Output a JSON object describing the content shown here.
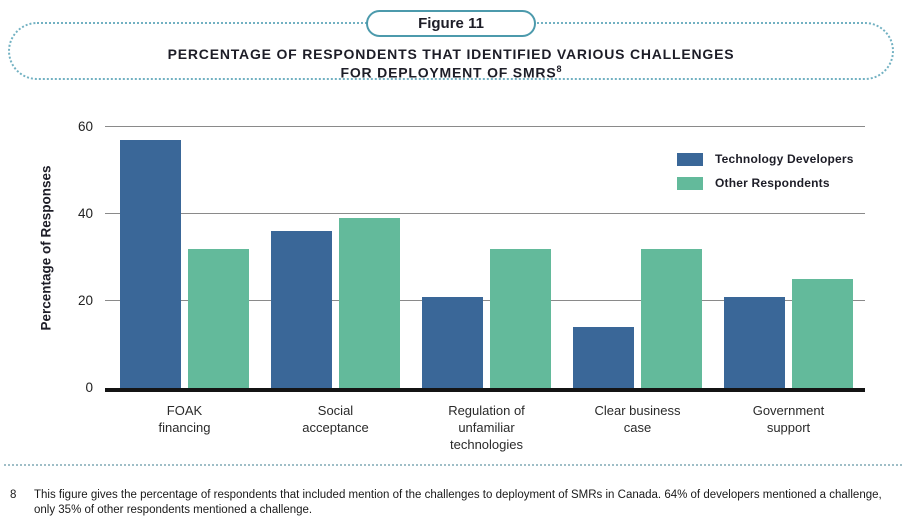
{
  "figure": {
    "tag_label": "Figure 11",
    "title_line1": "PERCENTAGE OF RESPONDENTS THAT IDENTIFIED VARIOUS CHALLENGES",
    "title_line2": "FOR DEPLOYMENT OF SMRS",
    "title_superscript": "8"
  },
  "chart_data": {
    "type": "bar",
    "title": "Percentage of respondents that identified various challenges for deployment of SMRs",
    "categories": [
      "FOAK financing",
      "Social acceptance",
      "Regulation of unfamiliar technologies",
      "Clear business case",
      "Government support"
    ],
    "categories_display": [
      "FOAK\nfinancing",
      "Social\nacceptance",
      "Regulation of\nunfamiliar\ntechnologies",
      "Clear business\ncase",
      "Government\nsupport"
    ],
    "series": [
      {
        "name": "Technology Developers",
        "color": "#3A6798",
        "values": [
          57,
          36,
          21,
          14,
          21
        ]
      },
      {
        "name": "Other Respondents",
        "color": "#63BA9B",
        "values": [
          32,
          39,
          32,
          32,
          25
        ]
      }
    ],
    "xlabel": "",
    "ylabel": "Percentage of Responses",
    "yticks": [
      0,
      20,
      40,
      60
    ],
    "ylim": [
      0,
      62
    ],
    "grid": true,
    "legend_position": "upper-right-inside-plot"
  },
  "footnote": {
    "marker": "8",
    "text": "This figure gives the percentage of respondents that included mention of the challenges to deployment of SMRs in Canada. 64% of developers mentioned a challenge,\nonly 35% of other respondents mentioned a challenge."
  },
  "colors": {
    "bar_blue": "#3A6798",
    "bar_green": "#63BA9B",
    "figure_box_border": "#72B1C2",
    "figure_pill_border": "#4C9AAC",
    "separator_dots": "#9FBEC7",
    "gridline": "#8A8A8A",
    "baseline": "#141414",
    "text_dark": "#1D1D27"
  }
}
